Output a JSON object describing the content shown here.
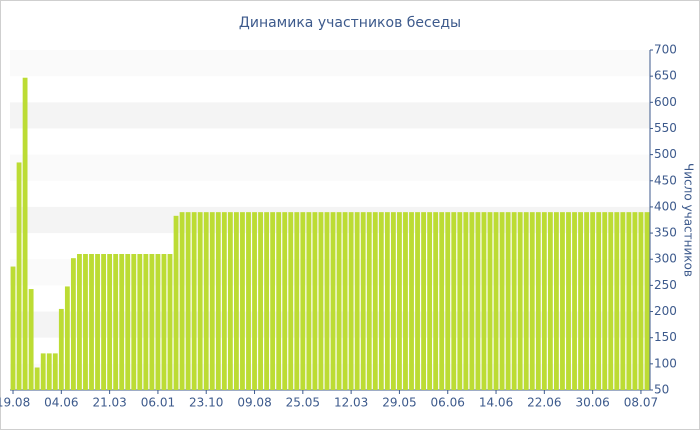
{
  "chart_data": {
    "type": "bar",
    "title": "Динамика участников беседы",
    "y_label": "Число участников",
    "categories": [
      "19.08",
      null,
      null,
      null,
      null,
      null,
      null,
      null,
      "04.06",
      null,
      null,
      null,
      null,
      null,
      null,
      null,
      "21.03",
      null,
      null,
      null,
      null,
      null,
      null,
      null,
      "06.01",
      null,
      null,
      null,
      null,
      null,
      null,
      null,
      "23.10",
      null,
      null,
      null,
      null,
      null,
      null,
      null,
      "09.08",
      null,
      null,
      null,
      null,
      null,
      null,
      null,
      "25.05",
      null,
      null,
      null,
      null,
      null,
      null,
      null,
      "12.03",
      null,
      null,
      null,
      null,
      null,
      null,
      null,
      "29.05",
      null,
      null,
      null,
      null,
      null,
      null,
      null,
      "06.06",
      null,
      null,
      null,
      null,
      null,
      null,
      null,
      "14.06",
      null,
      null,
      null,
      null,
      null,
      null,
      null,
      "22.06",
      null,
      null,
      null,
      null,
      null,
      null,
      null,
      "30.06",
      null,
      null,
      null,
      null,
      null,
      null,
      null,
      "08.07",
      null
    ],
    "values": [
      286,
      485,
      647,
      243,
      93,
      120,
      120,
      120,
      205,
      248,
      302,
      310,
      310,
      310,
      310,
      310,
      310,
      310,
      310,
      310,
      310,
      310,
      310,
      310,
      310,
      310,
      310,
      383,
      390,
      390,
      390,
      390,
      390,
      390,
      390,
      390,
      390,
      390,
      390,
      390,
      390,
      390,
      390,
      390,
      390,
      390,
      390,
      390,
      390,
      390,
      390,
      390,
      390,
      390,
      390,
      390,
      390,
      390,
      390,
      390,
      390,
      390,
      390,
      390,
      390,
      390,
      390,
      390,
      390,
      390,
      390,
      390,
      390,
      390,
      390,
      390,
      390,
      390,
      390,
      390,
      390,
      390,
      390,
      390,
      390,
      390,
      390,
      390,
      390,
      390,
      390,
      390,
      390,
      390,
      390,
      390,
      390,
      390,
      390,
      390,
      390,
      390,
      390,
      390,
      390,
      390
    ],
    "color": "#bcdc34",
    "ylim": [
      50,
      700
    ],
    "yticks": [
      50,
      100,
      150,
      200,
      250,
      300,
      350,
      400,
      450,
      500,
      550,
      600,
      650,
      700
    ],
    "y_axis_side": "right",
    "grid": true
  }
}
